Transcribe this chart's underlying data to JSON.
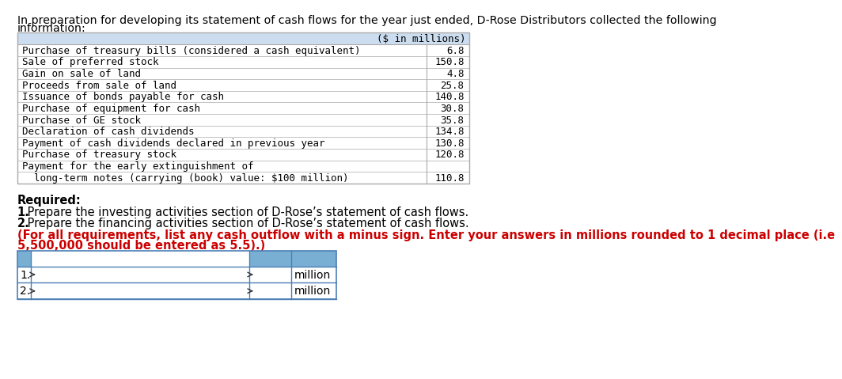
{
  "intro_text_line1": "In preparation for developing its statement of cash flows for the year just ended, D-Rose Distributors collected the following",
  "intro_text_line2": "information:",
  "table_header": "($ in millions)",
  "table_rows": [
    [
      "Purchase of treasury bills (considered a cash equivalent)",
      "6.8"
    ],
    [
      "Sale of preferred stock",
      "150.8"
    ],
    [
      "Gain on sale of land",
      "4.8"
    ],
    [
      "Proceeds from sale of land",
      "25.8"
    ],
    [
      "Issuance of bonds payable for cash",
      "140.8"
    ],
    [
      "Purchase of equipment for cash",
      "30.8"
    ],
    [
      "Purchase of GE stock",
      "35.8"
    ],
    [
      "Declaration of cash dividends",
      "134.8"
    ],
    [
      "Payment of cash dividends declared in previous year",
      "130.8"
    ],
    [
      "Purchase of treasury stock",
      "120.8"
    ],
    [
      "Payment for the early extinguishment of",
      ""
    ],
    [
      "  long-term notes (carrying (book) value: $100 million)",
      "110.8"
    ]
  ],
  "required_title": "Required:",
  "req_line1_bold": "1.",
  "req_line1_rest": " Prepare the investing activities section of D-Rose’s statement of cash flows.",
  "req_line2_bold": "2.",
  "req_line2_rest": " Prepare the financing activities section of D-Rose’s statement of cash flows.",
  "note_text_line1": "(For all requirements, list any cash outflow with a minus sign. Enter your answers in millions rounded to 1 decimal place (i.e",
  "note_text_line2": "5,500,000 should be entered as 5.5).)",
  "input_labels": [
    "1.",
    "2."
  ],
  "input_suffix": "million",
  "bg_color": "#ffffff",
  "table_border_color": "#aaaaaa",
  "table_header_bg": "#ccddf0",
  "table_row_bg": "#ffffff",
  "input_header_bg": "#7aafd4",
  "note_color": "#cc0000",
  "mono_font": "monospace",
  "sans_font": "DejaVu Sans"
}
